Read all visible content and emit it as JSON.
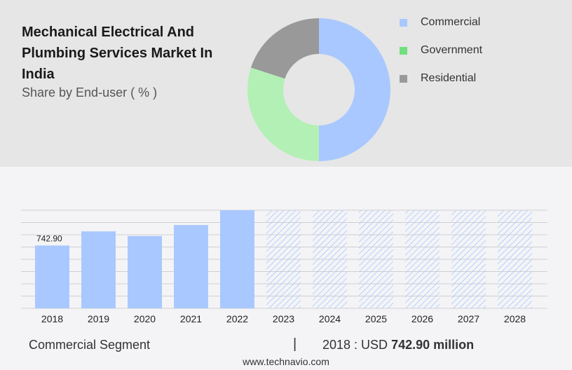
{
  "title": "Mechanical Electrical And Plumbing Services Market In India",
  "subtitle": "Share by End-user ( % )",
  "colors": {
    "commercial": "#a9c8ff",
    "government": "#b3f0b5",
    "residential": "#999999",
    "legend_government": "#6ee07f",
    "forecast_hatch": "#a9c8ff"
  },
  "pie": {
    "type": "donut",
    "slices": [
      {
        "name": "Commercial",
        "value": 50,
        "color": "#a9c8ff"
      },
      {
        "name": "Government",
        "value": 30,
        "color": "#b3f0b5"
      },
      {
        "name": "Residential",
        "value": 20,
        "color": "#999999"
      }
    ]
  },
  "legend": [
    {
      "label": "Commercial",
      "color": "#a9c8ff"
    },
    {
      "label": "Government",
      "color": "#6ee07f"
    },
    {
      "label": "Residential",
      "color": "#999999"
    }
  ],
  "chart_data": [
    {
      "type": "pie",
      "title": "Mechanical Electrical And Plumbing Services Market In India",
      "subtitle": "Share by End-user ( % )",
      "categories": [
        "Commercial",
        "Government",
        "Residential"
      ],
      "values": [
        50,
        30,
        20
      ]
    },
    {
      "type": "bar",
      "categories": [
        "2018",
        "2019",
        "2020",
        "2021",
        "2022",
        "2023",
        "2024",
        "2025",
        "2026",
        "2027",
        "2028"
      ],
      "values": [
        742.9,
        910,
        855,
        985,
        1160,
        1160,
        1160,
        1160,
        1160,
        1160,
        1160
      ],
      "forecast": [
        false,
        false,
        false,
        false,
        false,
        true,
        true,
        true,
        true,
        true,
        true
      ],
      "data_labels": [
        "742.90",
        "",
        "",
        "",
        "",
        "",
        "",
        "",
        "",
        "",
        ""
      ],
      "ylim": [
        0,
        1160
      ],
      "grid": true,
      "xlabel": "",
      "ylabel": ""
    }
  ],
  "footer": {
    "segment": "Commercial Segment",
    "divider": "|",
    "year_text": "2018 : USD",
    "value_text": "742.90 million",
    "source": "www.technavio.com"
  }
}
